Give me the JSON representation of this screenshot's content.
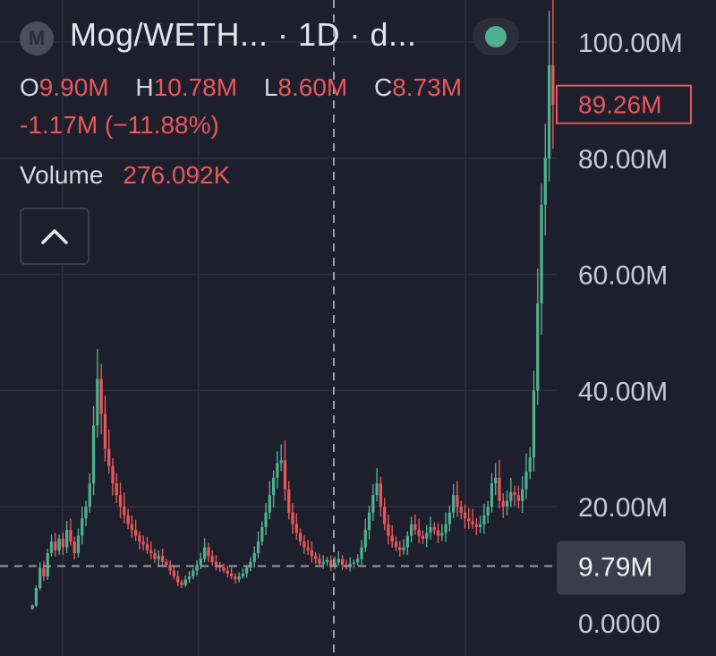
{
  "header": {
    "symbol_badge": "M",
    "title": "Mog/WETH... · 1D · d...",
    "status_color": "#4fb08f",
    "ohlc": {
      "o_label": "O",
      "o_value": "9.90M",
      "h_label": "H",
      "h_value": "10.78M",
      "l_label": "L",
      "l_value": "8.60M",
      "c_label": "C",
      "c_value": "8.73M"
    },
    "change": "-1.17M (−11.88%)",
    "volume_label": "Volume",
    "volume_value": "276.092K",
    "collapse_icon": "chevron-up-icon"
  },
  "colors": {
    "up": "#4fb08f",
    "down": "#e8575a",
    "background": "#1e1f2d",
    "grid": "#2e3040"
  },
  "chart_data": {
    "type": "candlestick",
    "y_ticks": [
      {
        "value": 100,
        "label": "100.00M"
      },
      {
        "value": 80,
        "label": "80.00M"
      },
      {
        "value": 60,
        "label": "60.00M"
      },
      {
        "value": 40,
        "label": "40.00M"
      },
      {
        "value": 20,
        "label": "20.00M"
      },
      {
        "value": 0,
        "label": "0.0000"
      }
    ],
    "y_unit": "M",
    "ylim": [
      0,
      103
    ],
    "current_price": {
      "value": 89.26,
      "label": "89.26M"
    },
    "crosshair_price": {
      "value": 9.79,
      "label": "9.79M"
    },
    "grid": true,
    "closes": [
      3.0,
      6.0,
      9.5,
      8.0,
      12.0,
      14.0,
      12.5,
      14.5,
      13.0,
      16.0,
      14.0,
      12.0,
      15.0,
      18.0,
      20.0,
      24.0,
      34.0,
      42.0,
      36.0,
      30.0,
      27.0,
      24.0,
      22.0,
      20.0,
      18.5,
      17.0,
      16.0,
      15.0,
      14.0,
      13.5,
      12.5,
      12.0,
      11.0,
      11.5,
      10.5,
      10.0,
      9.0,
      8.0,
      7.0,
      6.5,
      7.5,
      8.0,
      9.0,
      10.0,
      11.0,
      13.0,
      11.5,
      10.5,
      10.0,
      9.5,
      9.0,
      8.5,
      8.0,
      7.5,
      8.0,
      8.5,
      9.5,
      10.5,
      12.0,
      14.0,
      16.5,
      19.0,
      22.0,
      25.0,
      27.5,
      28.0,
      23.0,
      19.0,
      17.0,
      15.5,
      14.0,
      13.0,
      12.5,
      11.5,
      11.0,
      10.2,
      10.5,
      10.8,
      9.9,
      10.4,
      11.0,
      10.0,
      9.8,
      10.2,
      10.4,
      11.0,
      13.0,
      16.0,
      19.0,
      22.0,
      24.0,
      20.0,
      17.0,
      15.0,
      14.0,
      13.0,
      12.5,
      13.0,
      15.0,
      17.0,
      16.0,
      15.0,
      14.5,
      15.5,
      16.5,
      16.0,
      15.0,
      15.5,
      17.0,
      19.0,
      22.0,
      20.0,
      19.0,
      18.0,
      17.5,
      17.0,
      16.5,
      17.0,
      18.5,
      20.0,
      24.0,
      25.0,
      21.0,
      20.0,
      21.0,
      22.5,
      22.0,
      21.0,
      23.0,
      26.0,
      28.5,
      40.0,
      55.0,
      72.0,
      80.0,
      96.0,
      89.26
    ]
  }
}
